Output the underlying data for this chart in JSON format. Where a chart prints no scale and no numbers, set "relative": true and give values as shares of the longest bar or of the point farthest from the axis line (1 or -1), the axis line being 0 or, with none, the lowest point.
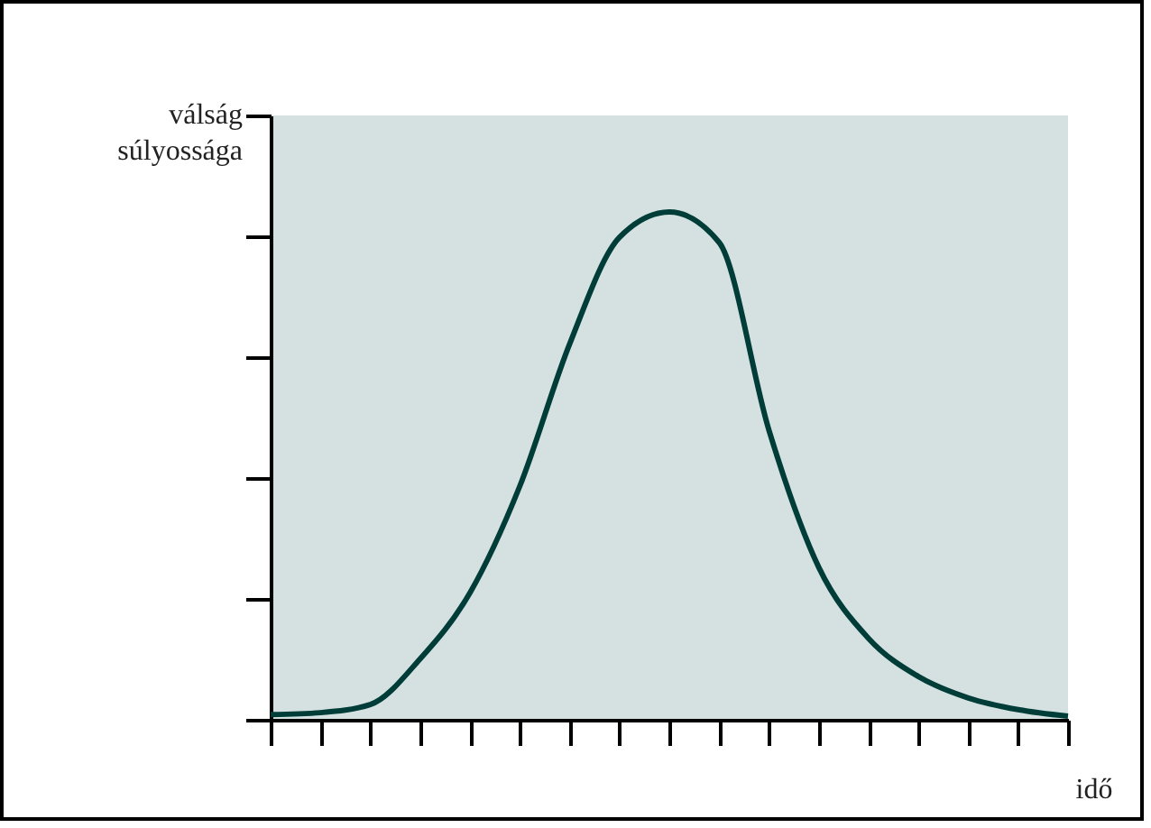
{
  "chart_data": {
    "type": "line",
    "xlabel": "idő",
    "ylabel": "válság súlyossága",
    "relative": true,
    "categories": [
      null,
      null,
      null,
      null,
      null,
      null,
      null,
      null,
      null,
      null,
      null,
      null,
      null,
      null,
      null,
      null,
      null
    ],
    "series": [
      {
        "color": "#003d38",
        "values": [
          0.01,
          0.014,
          0.03,
          0.12,
          0.25,
          0.46,
          0.74,
          0.95,
          1,
          0.94,
          0.57,
          0.3,
          0.16,
          0.085,
          0.043,
          0.02,
          0.007
        ]
      }
    ],
    "grid": false,
    "legend": false,
    "marker": "none",
    "line_style": "solid"
  }
}
